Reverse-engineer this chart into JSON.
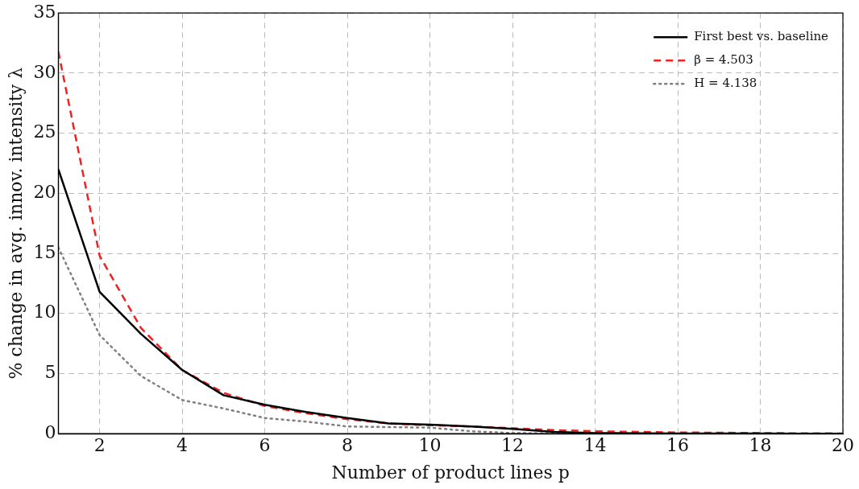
{
  "chart_data": {
    "type": "line",
    "xlabel": "Number of product lines p",
    "ylabel": "% change in avg. innov. intensity λ",
    "x": [
      1,
      2,
      3,
      4,
      5,
      6,
      7,
      8,
      9,
      10,
      11,
      12,
      13,
      14,
      15,
      16,
      17,
      18,
      19,
      20
    ],
    "xlim": [
      1,
      20
    ],
    "xticks": [
      2,
      4,
      6,
      8,
      10,
      12,
      14,
      16,
      18,
      20
    ],
    "ylim": [
      0,
      35
    ],
    "yticks": [
      0,
      5,
      10,
      15,
      20,
      25,
      30,
      35
    ],
    "grid": true,
    "legend": "top right",
    "marker": "none",
    "series": [
      {
        "name": "First best vs. baseline",
        "color": "#000000",
        "line_style": "solid",
        "values": [
          22,
          11.8,
          8.3,
          5.3,
          3.2,
          2.4,
          1.8,
          1.3,
          0.85,
          0.75,
          0.6,
          0.4,
          0.15,
          0.05,
          0.03,
          0.02,
          0.01,
          0.01,
          0,
          0
        ]
      },
      {
        "name": "β = 4.503",
        "color": "#ee2222",
        "line_style": "dashed",
        "values": [
          31.8,
          14.8,
          8.8,
          5.3,
          3.4,
          2.3,
          1.7,
          1.2,
          0.85,
          0.7,
          0.6,
          0.45,
          0.3,
          0.2,
          0.15,
          0.1,
          0.08,
          0.05,
          0.03,
          0.02
        ]
      },
      {
        "name": "H = 4.138",
        "color": "#808080",
        "line_style": "dotted",
        "values": [
          15.5,
          8.2,
          4.8,
          2.8,
          2.1,
          1.3,
          1,
          0.6,
          0.55,
          0.5,
          0.2,
          0.05,
          0.02,
          0.01,
          0,
          0,
          0,
          0,
          0,
          0
        ]
      }
    ]
  }
}
